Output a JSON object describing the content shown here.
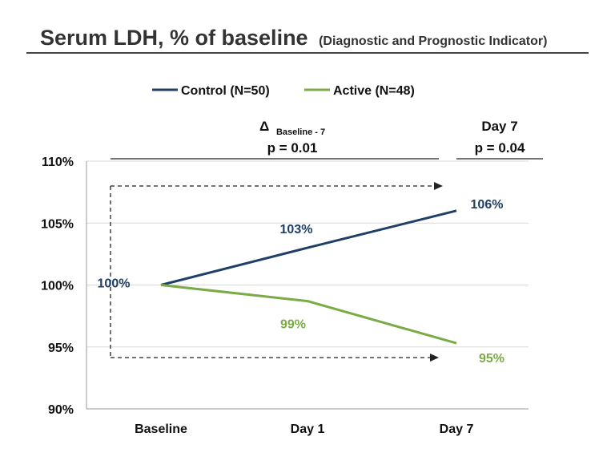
{
  "title": {
    "main": "Serum LDH, % of baseline",
    "sub": "(Diagnostic and Prognostic Indicator)"
  },
  "annotations": {
    "delta_symbol": "Δ",
    "delta_subscript": "Baseline - 7",
    "delta_p": "p = 0.01",
    "day7_label": "Day 7",
    "day7_p": "p = 0.04"
  },
  "colors": {
    "control": "#1f3f66",
    "active": "#7aab47",
    "text": "#111111",
    "grid": "#d9d9d9"
  },
  "chart_data": {
    "type": "line",
    "categories": [
      "Baseline",
      "Day 1",
      "Day 7"
    ],
    "ylim": [
      90,
      110
    ],
    "yticks": [
      90,
      95,
      100,
      105,
      110
    ],
    "ytick_labels": [
      "90%",
      "95%",
      "100%",
      "105%",
      "110%"
    ],
    "grid": true,
    "legend": "top-center",
    "series": [
      {
        "name": "Control (N=50)",
        "key": "control",
        "values": [
          100,
          103,
          106
        ]
      },
      {
        "name": "Active (N=48)",
        "key": "active",
        "values": [
          100,
          98.7,
          95.3
        ]
      }
    ],
    "data_labels": {
      "shared_baseline": "100%",
      "control": [
        "103%",
        "106%"
      ],
      "active": [
        "99%",
        "95%"
      ]
    }
  }
}
